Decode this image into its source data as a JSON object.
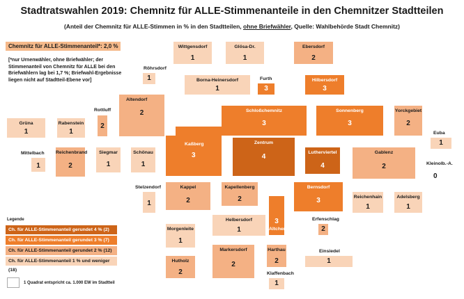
{
  "title": "Stadtratswahlen 2019: Chemnitz für ALLE-Stimmenanteile in den Chemnitzer Stadtteilen",
  "subtitle": {
    "pre": "(Anteil der Chemnitz für ALLE-Stimmen in % in den Stadtteilen, ",
    "underlined": "ohne Briefwähler",
    "post": ", Quelle: Wahlbehörde Stadt Chemnitz)"
  },
  "overall_share": "Chemnitz für ALLE-Stimmenanteil*: 2,0 %",
  "footnote": "[*nur Urnenwähler, ohne Briefwähler; der Stimmenanteil von Chemnitz für ALLE bei den Briefwählern lag bei 1,7 %; Briefwahl-Ergebnisse liegen nicht auf Stadtteil-Ebene vor]",
  "colors": {
    "c4": "#cd6418",
    "c3": "#ee7e2b",
    "c2": "#f4b184",
    "c1": "#f9d4b8"
  },
  "districts": [
    {
      "name": "Wittgensdorf",
      "value": "1"
    },
    {
      "name": "Glösa-Dr.",
      "value": "1"
    },
    {
      "name": "Ebersdorf",
      "value": "2"
    },
    {
      "name": "Röhrsdorf",
      "value": "1"
    },
    {
      "name": "Borna-Heinersdorf",
      "value": "1"
    },
    {
      "name": "Furth",
      "value": "3"
    },
    {
      "name": "Hilbersdorf",
      "value": "3"
    },
    {
      "name": "Altendorf",
      "value": "2"
    },
    {
      "name": "Rottluff",
      "value": "2"
    },
    {
      "name": "Grüna",
      "value": "1"
    },
    {
      "name": "Rabenstein",
      "value": "1"
    },
    {
      "name": "Schloßchemnitz",
      "value": "3"
    },
    {
      "name": "Sonnenberg",
      "value": "3"
    },
    {
      "name": "Yorckgebiet",
      "value": "2"
    },
    {
      "name": "Euba",
      "value": "1"
    },
    {
      "name": "Mittelbach",
      "value": "1"
    },
    {
      "name": "Reichenbrand",
      "value": "2"
    },
    {
      "name": "Siegmar",
      "value": "1"
    },
    {
      "name": "Schönau",
      "value": "1"
    },
    {
      "name": "Kaßberg",
      "value": "3"
    },
    {
      "name": "Zentrum",
      "value": "4"
    },
    {
      "name": "Lutherviertel",
      "value": "4"
    },
    {
      "name": "Gablenz",
      "value": "2"
    },
    {
      "name": "Kleinolb.-A.",
      "value": "0"
    },
    {
      "name": "Stelzendorf",
      "value": "1"
    },
    {
      "name": "Kappel",
      "value": "2"
    },
    {
      "name": "Kapellenberg",
      "value": "2"
    },
    {
      "name": "Bernsdorf",
      "value": "3"
    },
    {
      "name": "Reichenhain",
      "value": "1"
    },
    {
      "name": "Adelsberg",
      "value": "1"
    },
    {
      "name": "Helbersdorf",
      "value": "1"
    },
    {
      "name": "Altchemnitz",
      "value": "3"
    },
    {
      "name": "Erfenschlag",
      "value": "2"
    },
    {
      "name": "Morgenleite",
      "value": "1"
    },
    {
      "name": "Markersdorf",
      "value": "2"
    },
    {
      "name": "Harthau",
      "value": "2"
    },
    {
      "name": "Einsiedel",
      "value": "1"
    },
    {
      "name": "Hutholz",
      "value": "2"
    },
    {
      "name": "Klaffenbach",
      "value": "1"
    }
  ],
  "legend": {
    "title": "Legende",
    "items": [
      "Ch. für ALLE-Stimmenanteil gerundet 4 % (2)",
      "Ch. für ALLE-Stimmenanteil gerundet 3 % (7)",
      "Ch. für ALLE-Stimmenanteil gerundet 2 % (12)",
      "Ch. für ALLE-Stimmenanteil 1 % und weniger (18)"
    ],
    "scale": "1 Quadrat entspricht ca. 1.000 EW im Stadtteil"
  }
}
